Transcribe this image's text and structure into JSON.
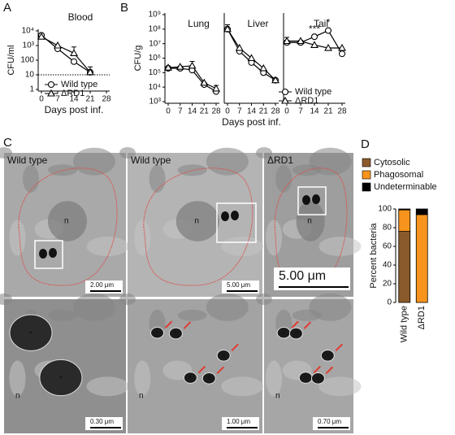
{
  "panel_labels": [
    "A",
    "B",
    "C",
    "D"
  ],
  "chart_data": [
    {
      "type": "line",
      "title": "Blood",
      "ylabel": "CFU/ml",
      "xlabel": "Days post inf.",
      "log_y": true,
      "x": [
        0,
        7,
        14,
        21
      ],
      "xlim": [
        0,
        28
      ],
      "xticks": [
        0,
        7,
        14,
        21,
        28
      ],
      "ylim": [
        1,
        10000
      ],
      "yticks": [
        1,
        10,
        100,
        {
          "value": 1000,
          "label": "10³"
        },
        {
          "value": 10000,
          "label": "10⁴"
        }
      ],
      "hline": 10,
      "legend": "lower left",
      "series": [
        {
          "name": "Wild type",
          "color": "#000000",
          "marker": "circle",
          "values": [
            5000,
            600,
            80,
            15
          ],
          "errors": [
            null,
            null,
            null,
            20
          ]
        },
        {
          "name": "ΔRD1",
          "color": "#000000",
          "marker": "triangle",
          "values": [
            4000,
            1000,
            300,
            15
          ],
          "errors": [
            null,
            null,
            500,
            null
          ]
        }
      ]
    },
    {
      "type": "line",
      "title": "Lung",
      "ylabel": "CFU/g",
      "log_y": true,
      "x": [
        0,
        7,
        14,
        21,
        28
      ],
      "xlim": [
        0,
        28
      ],
      "xticks": [
        0,
        7,
        14,
        21,
        28
      ],
      "ylim": [
        1000,
        1000000000
      ],
      "yticks": [
        {
          "value": 1000,
          "label": "10³"
        },
        {
          "value": 10000,
          "label": "10⁴"
        },
        {
          "value": 100000,
          "label": "10⁵"
        },
        {
          "value": 1000000,
          "label": "10⁶"
        },
        {
          "value": 10000000,
          "label": "10⁷"
        },
        {
          "value": 100000000,
          "label": "10⁸"
        },
        {
          "value": 1000000000,
          "label": "10⁹"
        }
      ],
      "series": [
        {
          "color": "#000000",
          "marker": "circle",
          "values": [
            200000,
            200000,
            150000,
            15000,
            5000
          ],
          "errors": [
            null,
            null,
            null,
            null,
            null
          ]
        },
        {
          "color": "#000000",
          "marker": "triangle",
          "values": [
            220000,
            250000,
            300000,
            20000,
            8000
          ],
          "errors": [
            null,
            null,
            300000,
            null,
            5000
          ]
        }
      ]
    },
    {
      "type": "line",
      "title": "Liver",
      "xlabel": "Days post inf.",
      "log_y": true,
      "x": [
        0,
        7,
        14,
        21,
        28
      ],
      "xlim": [
        0,
        28
      ],
      "xticks": [
        0,
        7,
        14,
        21,
        28
      ],
      "ylim": [
        1000,
        1000000000
      ],
      "series": [
        {
          "color": "#000000",
          "marker": "circle",
          "values": [
            100000000,
            3000000,
            500000,
            100000,
            30000
          ],
          "errors": [
            100000000,
            null,
            null,
            null,
            null
          ]
        },
        {
          "color": "#000000",
          "marker": "triangle",
          "values": [
            100000000,
            5000000,
            1000000,
            200000,
            30000
          ],
          "errors": [
            null,
            null,
            null,
            null,
            null
          ]
        }
      ]
    },
    {
      "type": "line",
      "title": "Tail",
      "log_y": true,
      "legend": "lower right",
      "x": [
        0,
        7,
        14,
        21,
        28
      ],
      "xlim": [
        0,
        28
      ],
      "xticks": [
        0,
        7,
        14,
        21,
        28
      ],
      "ylim": [
        1000,
        1000000000
      ],
      "annotations": [
        {
          "text": "***",
          "x": 14
        },
        {
          "text": "*",
          "x": 21
        }
      ],
      "series": [
        {
          "name": "Wild type",
          "color": "#000000",
          "marker": "circle",
          "values": [
            12000000,
            12000000,
            30000000,
            80000000,
            2000000
          ],
          "errors": [
            15000000,
            null,
            null,
            null,
            null
          ]
        },
        {
          "name": "ΔRD1",
          "color": "#000000",
          "marker": "triangle",
          "values": [
            15000000,
            15000000,
            8000000,
            5000000,
            5000000
          ],
          "errors": [
            null,
            null,
            null,
            null,
            null
          ]
        }
      ]
    },
    {
      "type": "stacked_bar",
      "ylabel": "Percent bacteria",
      "categories": [
        "Wild type",
        "ΔRD1"
      ],
      "ylim": [
        0,
        100
      ],
      "yticks": [
        0,
        20,
        40,
        60,
        80,
        100
      ],
      "legend": "upper left",
      "series": [
        {
          "name": "Cytosolic",
          "color": "#8b5a2b",
          "values": [
            76,
            0
          ]
        },
        {
          "name": "Phagosomal",
          "color": "#f7941d",
          "values": [
            23,
            94
          ]
        },
        {
          "name": "Undeterminable",
          "color": "#000000",
          "values": [
            1,
            6
          ]
        }
      ]
    }
  ],
  "micrograph_marks": {
    "nucleus": "n",
    "bacterium": "*"
  },
  "micrographs": [
    {
      "label": "Wild type",
      "scale": "2.00 μm"
    },
    {
      "label": "Wild type",
      "scale": "5.00 μm"
    },
    {
      "label": "ΔRD1",
      "scale": "5.00 μm"
    },
    {
      "scale": "0.30 μm"
    },
    {
      "scale": "1.00 μm"
    },
    {
      "scale": "0.70 μm"
    }
  ]
}
